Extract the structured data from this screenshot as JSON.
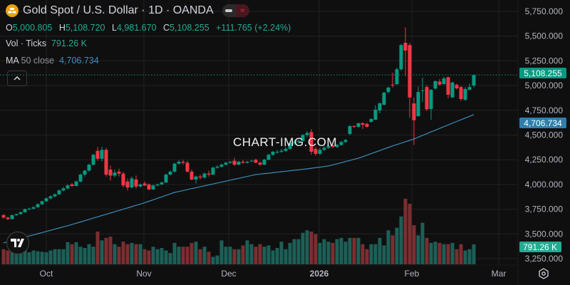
{
  "header": {
    "title": "Gold Spot / U.S. Dollar · 1D · OANDA",
    "logo_icon": "gold-bars-icon",
    "toggle_icons": [
      "minus-icon",
      "approx-wave-icon"
    ],
    "ohlc": {
      "o_label": "O",
      "o": "5,000.805",
      "h_label": "H",
      "h": "5,108.720",
      "l_label": "L",
      "l": "4,981.670",
      "c_label": "C",
      "c": "5,108.255",
      "change": "+111.765 (+2.24%)"
    },
    "volume": {
      "label": "Vol · Ticks",
      "value": "791.26 K"
    },
    "ma": {
      "label": "MA",
      "params": "50 close",
      "value": "4,706.734"
    }
  },
  "watermark": "CHART-IMG.COM",
  "colors": {
    "up": "#089981",
    "down": "#f23645",
    "vol_up": "#1d5f57",
    "vol_down": "#7b2e30",
    "ma": "#3a8cbd",
    "background": "#0f0f0f",
    "grid": "#222222"
  },
  "chart_data": {
    "type": "candlestick",
    "ylim": [
      3250,
      5750
    ],
    "price_ticks": [
      "5,750.000",
      "5,500.000",
      "5,250.000",
      "5,000.000",
      "4,750.000",
      "4,500.000",
      "4,250.000",
      "4,000.000",
      "3,750.000",
      "3,500.000",
      "3,250.000"
    ],
    "price_tick_values": [
      5750,
      5500,
      5250,
      5000,
      4750,
      4500,
      4250,
      4000,
      3750,
      3500,
      3250
    ],
    "x_ticks": [
      {
        "label": "Oct",
        "bold": false
      },
      {
        "label": "Nov",
        "bold": false
      },
      {
        "label": "Dec",
        "bold": false
      },
      {
        "label": "2026",
        "bold": true
      },
      {
        "label": "Feb",
        "bold": false
      },
      {
        "label": "Mar",
        "bold": false
      }
    ],
    "last_price_label": "5,108.255",
    "last_price": 5108.255,
    "ma_label": "4,706.734",
    "volume_label": "791.26 K",
    "candles_ohlc": [
      [
        3690,
        3700,
        3655,
        3665
      ],
      [
        3665,
        3675,
        3640,
        3650
      ],
      [
        3650,
        3695,
        3645,
        3690
      ],
      [
        3690,
        3705,
        3680,
        3700
      ],
      [
        3700,
        3725,
        3695,
        3720
      ],
      [
        3720,
        3755,
        3715,
        3750
      ],
      [
        3750,
        3765,
        3740,
        3755
      ],
      [
        3755,
        3780,
        3750,
        3770
      ],
      [
        3770,
        3810,
        3765,
        3800
      ],
      [
        3800,
        3835,
        3790,
        3830
      ],
      [
        3830,
        3870,
        3820,
        3860
      ],
      [
        3860,
        3890,
        3850,
        3880
      ],
      [
        3880,
        3910,
        3870,
        3900
      ],
      [
        3900,
        3950,
        3895,
        3940
      ],
      [
        3940,
        3975,
        3930,
        3960
      ],
      [
        3960,
        4000,
        3950,
        3990
      ],
      [
        4000,
        4015,
        3975,
        3985
      ],
      [
        3985,
        4040,
        3980,
        4030
      ],
      [
        4030,
        4110,
        4020,
        4100
      ],
      [
        4100,
        4150,
        4080,
        4140
      ],
      [
        4140,
        4210,
        4130,
        4200
      ],
      [
        4200,
        4310,
        4190,
        4300
      ],
      [
        4340,
        4380,
        4240,
        4260
      ],
      [
        4260,
        4380,
        4230,
        4350
      ],
      [
        4350,
        4370,
        4080,
        4100
      ],
      [
        4150,
        4190,
        4040,
        4090
      ],
      [
        4090,
        4150,
        4070,
        4120
      ],
      [
        4130,
        4160,
        4080,
        4110
      ],
      [
        4110,
        4130,
        3970,
        3990
      ],
      [
        4030,
        4060,
        3940,
        3970
      ],
      [
        3970,
        4080,
        3960,
        4060
      ],
      [
        4050,
        4090,
        3960,
        3980
      ],
      [
        3980,
        4010,
        3970,
        4000
      ],
      [
        4010,
        4030,
        3985,
        3990
      ],
      [
        4000,
        4010,
        3940,
        3950
      ],
      [
        3950,
        4000,
        3945,
        3990
      ],
      [
        3990,
        4010,
        3980,
        4000
      ],
      [
        4000,
        4030,
        3995,
        4020
      ],
      [
        4020,
        4110,
        4015,
        4100
      ],
      [
        4100,
        4140,
        4090,
        4130
      ],
      [
        4130,
        4220,
        4120,
        4210
      ],
      [
        4210,
        4245,
        4200,
        4230
      ],
      [
        4230,
        4250,
        4200,
        4220
      ],
      [
        4220,
        4240,
        4120,
        4130
      ],
      [
        4130,
        4150,
        4040,
        4050
      ],
      [
        4050,
        4090,
        4010,
        4080
      ],
      [
        4080,
        4100,
        4050,
        4070
      ],
      [
        4070,
        4120,
        4060,
        4110
      ],
      [
        4110,
        4140,
        4080,
        4100
      ],
      [
        4100,
        4180,
        4095,
        4170
      ],
      [
        4170,
        4195,
        4160,
        4180
      ],
      [
        4180,
        4210,
        4170,
        4200
      ],
      [
        4200,
        4230,
        4190,
        4220
      ],
      [
        4220,
        4240,
        4210,
        4230
      ],
      [
        4240,
        4270,
        4190,
        4200
      ],
      [
        4200,
        4240,
        4195,
        4230
      ],
      [
        4230,
        4250,
        4210,
        4220
      ],
      [
        4220,
        4240,
        4210,
        4230
      ],
      [
        4235,
        4250,
        4230,
        4240
      ],
      [
        4250,
        4260,
        4215,
        4220
      ],
      [
        4220,
        4235,
        4190,
        4200
      ],
      [
        4200,
        4260,
        4195,
        4250
      ],
      [
        4250,
        4310,
        4245,
        4300
      ],
      [
        4300,
        4340,
        4290,
        4330
      ],
      [
        4330,
        4350,
        4310,
        4330
      ],
      [
        4330,
        4360,
        4320,
        4340
      ],
      [
        4340,
        4380,
        4330,
        4360
      ],
      [
        4360,
        4440,
        4350,
        4420
      ],
      [
        4420,
        4450,
        4400,
        4430
      ],
      [
        4430,
        4460,
        4410,
        4440
      ],
      [
        4440,
        4510,
        4430,
        4500
      ],
      [
        4500,
        4540,
        4480,
        4520
      ],
      [
        4530,
        4560,
        4300,
        4330
      ],
      [
        4360,
        4380,
        4290,
        4310
      ],
      [
        4310,
        4370,
        4300,
        4350
      ],
      [
        4350,
        4390,
        4340,
        4370
      ],
      [
        4370,
        4400,
        4360,
        4390
      ],
      [
        4395,
        4410,
        4370,
        4380
      ],
      [
        4380,
        4410,
        4370,
        4400
      ],
      [
        4400,
        4440,
        4390,
        4430
      ],
      [
        4430,
        4460,
        4420,
        4450
      ],
      [
        4511,
        4600,
        4500,
        4590
      ],
      [
        4590,
        4600,
        4570,
        4583
      ],
      [
        4583,
        4625,
        4575,
        4619
      ],
      [
        4619,
        4630,
        4560,
        4604
      ],
      [
        4612,
        4625,
        4575,
        4583
      ],
      [
        4633,
        4670,
        4625,
        4662
      ],
      [
        4655,
        4800,
        4650,
        4756
      ],
      [
        4748,
        4830,
        4720,
        4821
      ],
      [
        4806,
        4935,
        4800,
        4929
      ],
      [
        4936,
        4990,
        4920,
        4979
      ],
      [
        5010,
        5130,
        4980,
        5008
      ],
      [
        5015,
        5180,
        5005,
        5165
      ],
      [
        5165,
        5420,
        5150,
        5410
      ],
      [
        5433,
        5590,
        5094,
        5354
      ],
      [
        5410,
        5430,
        4675,
        4880
      ],
      [
        4820,
        4880,
        4400,
        4650
      ],
      [
        4690,
        4990,
        4690,
        4935
      ],
      [
        4950,
        5080,
        4835,
        4950
      ],
      [
        4985,
        5005,
        4745,
        4760
      ],
      [
        4763,
        4965,
        4655,
        4957
      ],
      [
        4970,
        5050,
        4960,
        5045
      ],
      [
        5040,
        5065,
        5000,
        5010
      ],
      [
        5015,
        5090,
        5010,
        5072
      ],
      [
        5085,
        5090,
        4871,
        4907
      ],
      [
        4880,
        5040,
        4875,
        5030
      ],
      [
        5008,
        5020,
        4960,
        4972
      ],
      [
        4985,
        4995,
        4845,
        4864
      ],
      [
        4857,
        4985,
        4845,
        4965
      ],
      [
        4958,
        5020,
        4950,
        4985
      ],
      [
        5000.805,
        5108.72,
        4981.67,
        5108.255
      ]
    ],
    "volume_k": [
      600,
      550,
      550,
      500,
      450,
      600,
      480,
      550,
      520,
      500,
      480,
      550,
      600,
      600,
      600,
      880,
      800,
      880,
      700,
      650,
      800,
      700,
      1300,
      950,
      1050,
      1100,
      800,
      700,
      900,
      800,
      850,
      800,
      800,
      600,
      550,
      700,
      600,
      650,
      550,
      450,
      850,
      700,
      700,
      700,
      850,
      900,
      600,
      700,
      500,
      300,
      350,
      950,
      700,
      700,
      600,
      600,
      750,
      950,
      800,
      700,
      800,
      700,
      750,
      550,
      650,
      900,
      600,
      850,
      1000,
      1000,
      1250,
      1350,
      1300,
      1200,
      850,
      1000,
      900,
      850,
      1000,
      1050,
      900,
      1050,
      1050,
      1050,
      800,
      600,
      800,
      800,
      1050,
      750,
      1350,
      1150,
      1450,
      1900,
      2600,
      2400,
      1550,
      1150,
      1650,
      1050,
      850,
      900,
      850,
      800,
      800,
      850,
      600,
      800,
      550,
      600,
      791.26
    ],
    "ma50": [
      3409,
      3421,
      3432,
      3444,
      3455,
      3467,
      3479,
      3490,
      3502,
      3514,
      3525,
      3537,
      3548,
      3560,
      3572,
      3583,
      3595,
      3608,
      3621,
      3634,
      3647,
      3660,
      3673,
      3686,
      3698,
      3711,
      3724,
      3737,
      3750,
      3763,
      3776,
      3789,
      3802,
      3815,
      3830,
      3845,
      3860,
      3875,
      3890,
      3905,
      3920,
      3929,
      3939,
      3948,
      3958,
      3967,
      3977,
      3986,
      3996,
      4005,
      4015,
      4024,
      4034,
      4043,
      4053,
      4062,
      4072,
      4081,
      4091,
      4100,
      4105,
      4110,
      4114,
      4119,
      4124,
      4129,
      4134,
      4139,
      4144,
      4148,
      4153,
      4158,
      4164,
      4170,
      4175,
      4181,
      4187,
      4198,
      4209,
      4220,
      4232,
      4243,
      4254,
      4265,
      4281,
      4296,
      4312,
      4328,
      4343,
      4359,
      4374,
      4390,
      4404,
      4418,
      4432,
      4446,
      4460,
      4478,
      4496,
      4514,
      4532,
      4549,
      4567,
      4585,
      4602,
      4620,
      4637,
      4654,
      4672,
      4689,
      4706.734
    ]
  }
}
